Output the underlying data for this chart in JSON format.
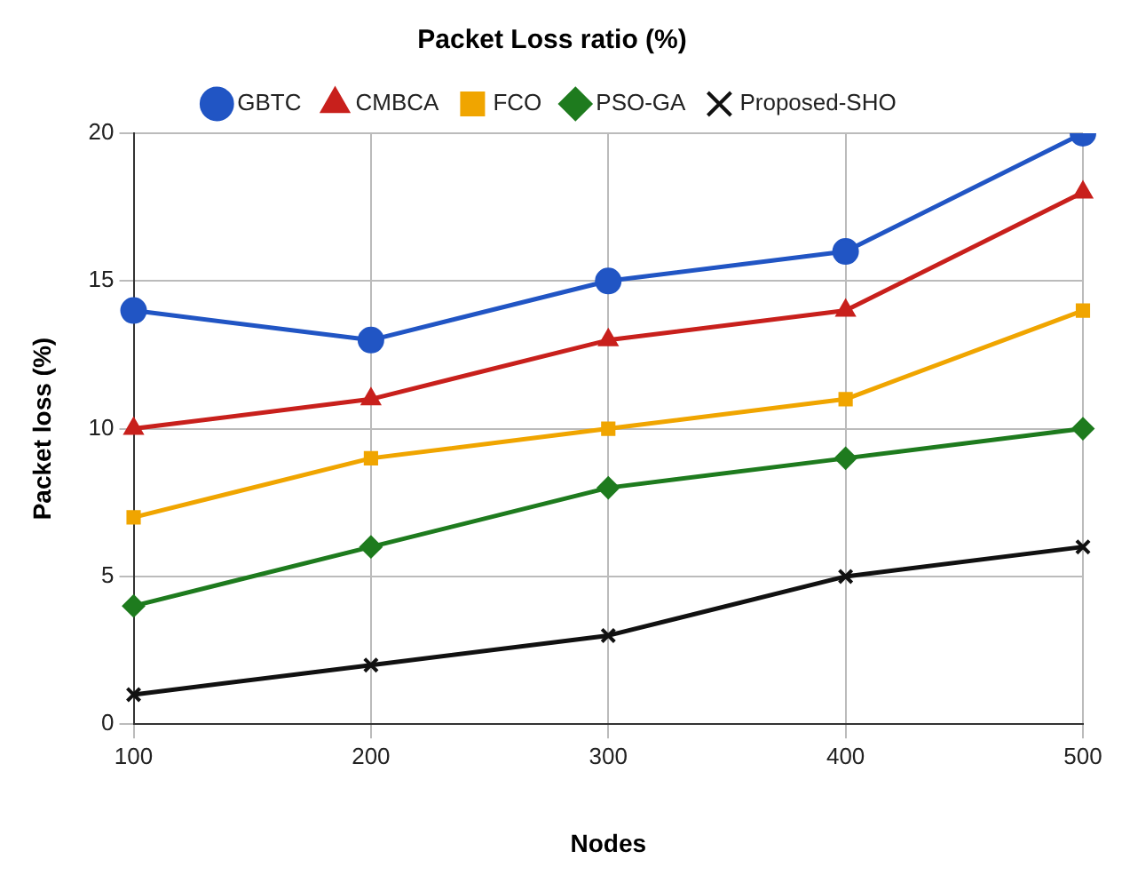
{
  "chart_data": {
    "type": "line",
    "title": "Packet Loss ratio (%)",
    "xlabel": "Nodes",
    "ylabel": "Packet loss (%)",
    "categories": [
      "100",
      "200",
      "300",
      "400",
      "500"
    ],
    "series": [
      {
        "name": "GBTC",
        "color": "#2155c4",
        "values": [
          14,
          13,
          15,
          16,
          20
        ],
        "marker": "circle"
      },
      {
        "name": "CMBCA",
        "color": "#c8201c",
        "values": [
          10,
          11,
          13,
          14,
          18
        ],
        "marker": "triangle"
      },
      {
        "name": "FCO",
        "color": "#f0a500",
        "values": [
          7,
          9,
          10,
          11,
          14
        ],
        "marker": "square"
      },
      {
        "name": "PSO-GA",
        "color": "#1e7b1e",
        "values": [
          4,
          6,
          8,
          9,
          10
        ],
        "marker": "diamond"
      },
      {
        "name": "Proposed-SHO",
        "color": "#111111",
        "values": [
          1,
          2,
          3,
          5,
          6
        ],
        "marker": "cross"
      }
    ],
    "ylim": [
      0,
      20
    ],
    "yticks": [
      0,
      5,
      10,
      15,
      20
    ],
    "grid": true,
    "legend": "top"
  }
}
